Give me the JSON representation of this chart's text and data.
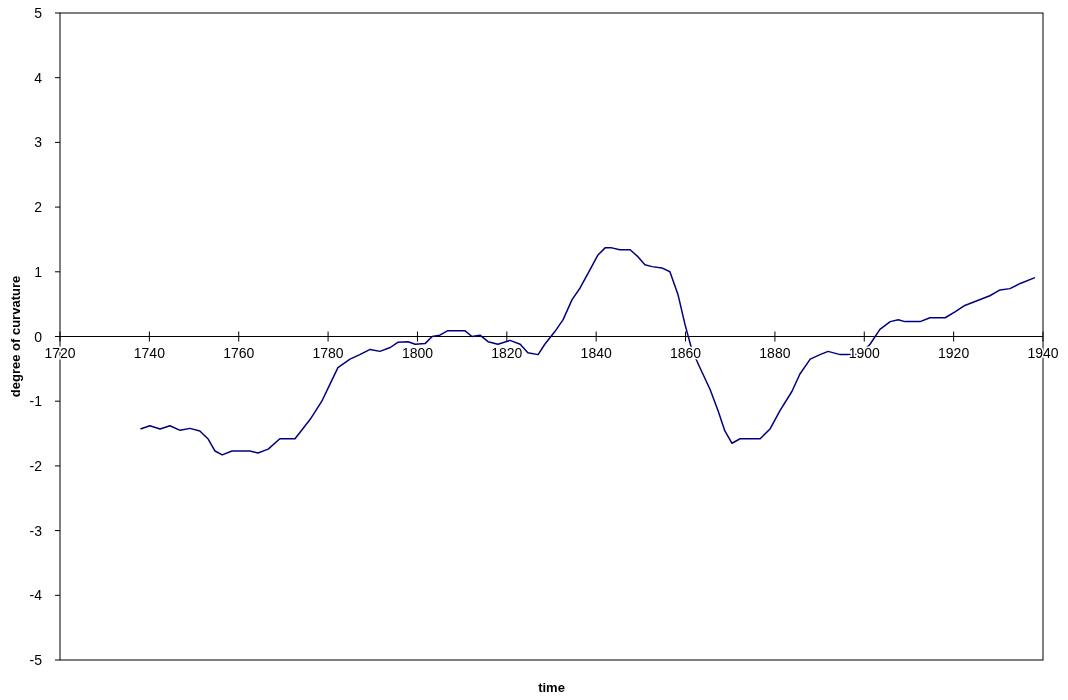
{
  "chart_data": {
    "type": "line",
    "xlabel": "time",
    "ylabel": "degree of curvature",
    "xlim": [
      1720,
      1940
    ],
    "xticks": [
      1720,
      1740,
      1760,
      1780,
      1800,
      1820,
      1840,
      1860,
      1880,
      1900,
      1920,
      1940
    ],
    "ylim": [
      -5,
      5
    ],
    "yticks": [
      -5,
      -4,
      -3,
      -2,
      -1,
      0,
      1,
      2,
      3,
      4,
      5
    ],
    "grid": false,
    "marker": "none",
    "line_style": "solid",
    "series": [
      {
        "color": "#000080",
        "x": [
          1738,
          1740.1,
          1742.4,
          1744.6,
          1746.9,
          1749.1,
          1751.3,
          1753.1,
          1754.7,
          1756.3,
          1758.5,
          1762.5,
          1764.3,
          1766.6,
          1769.2,
          1772.6,
          1776,
          1778.6,
          1780.4,
          1782.2,
          1784.9,
          1787.1,
          1789.4,
          1791.6,
          1793.9,
          1795.6,
          1797.9,
          1799.5,
          1801.7,
          1803.3,
          1805,
          1806.8,
          1810.6,
          1812.2,
          1814,
          1815.8,
          1818,
          1820.7,
          1823,
          1824.7,
          1827,
          1828.5,
          1830.8,
          1832.6,
          1834.6,
          1836.4,
          1838.6,
          1840.4,
          1842,
          1843.5,
          1845.3,
          1847.6,
          1849.4,
          1850.9,
          1852.5,
          1854.7,
          1856.5,
          1858.3,
          1859.9,
          1861.4,
          1863.2,
          1865.5,
          1867.3,
          1868.8,
          1870.4,
          1872.2,
          1876.7,
          1878.9,
          1881.1,
          1883.8,
          1885.6,
          1887.9,
          1890.1,
          1891.9,
          1894.6,
          1899,
          1901.3,
          1903.5,
          1905.8,
          1907.6,
          1909.1,
          1912.5,
          1914.7,
          1918.1,
          1920.3,
          1922.5,
          1924.8,
          1928.1,
          1930.4,
          1932.6,
          1934.9,
          1938.2
        ],
        "values": [
          -1.43,
          -1.38,
          -1.43,
          -1.38,
          -1.45,
          -1.42,
          -1.46,
          -1.58,
          -1.77,
          -1.83,
          -1.77,
          -1.77,
          -1.8,
          -1.74,
          -1.58,
          -1.58,
          -1.28,
          -1.0,
          -0.74,
          -0.48,
          -0.35,
          -0.28,
          -0.2,
          -0.23,
          -0.17,
          -0.09,
          -0.08,
          -0.12,
          -0.11,
          0,
          0.02,
          0.09,
          0.09,
          0,
          0.02,
          -0.08,
          -0.12,
          -0.06,
          -0.12,
          -0.25,
          -0.28,
          -0.12,
          0.08,
          0.26,
          0.57,
          0.75,
          1.03,
          1.26,
          1.37,
          1.37,
          1.34,
          1.34,
          1.23,
          1.11,
          1.08,
          1.06,
          1.0,
          0.65,
          0.18,
          -0.2,
          -0.48,
          -0.82,
          -1.15,
          -1.46,
          -1.65,
          -1.58,
          -1.58,
          -1.43,
          -1.15,
          -0.85,
          -0.58,
          -0.35,
          -0.28,
          -0.23,
          -0.28,
          -0.28,
          -0.12,
          0.11,
          0.23,
          0.26,
          0.23,
          0.23,
          0.29,
          0.29,
          0.38,
          0.48,
          0.54,
          0.63,
          0.72,
          0.74,
          0.82,
          0.91
        ]
      }
    ]
  }
}
